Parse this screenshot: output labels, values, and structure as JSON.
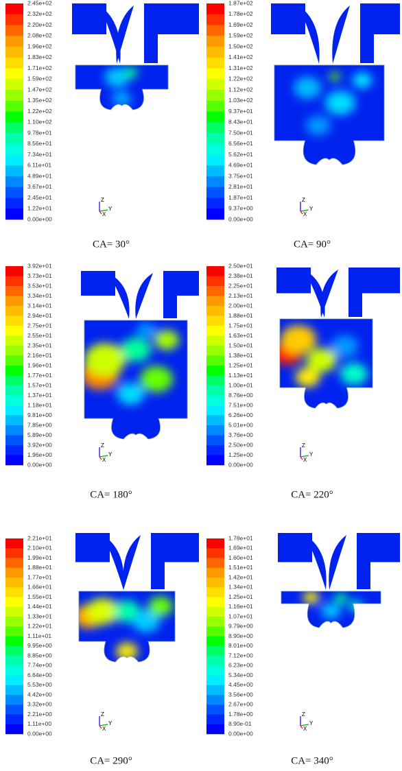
{
  "panels": [
    {
      "caption": "CA= 30°",
      "legend": [
        "2.45e+02",
        "2.32e+02",
        "2.20e+02",
        "2.08e+02",
        "1.96e+02",
        "1.83e+02",
        "1.71e+02",
        "1.59e+02",
        "1.47e+02",
        "1.35e+02",
        "1.22e+02",
        "1.10e+02",
        "9.78e+01",
        "8.56e+01",
        "7.34e+01",
        "6.11e+01",
        "4.89e+01",
        "3.67e+01",
        "2.45e+01",
        "1.22e+01",
        "0.00e+00"
      ]
    },
    {
      "caption": "CA= 90°",
      "legend": [
        "1.87e+02",
        "1.78e+02",
        "1.69e+02",
        "1.59e+02",
        "1.50e+02",
        "1.41e+02",
        "1.31e+02",
        "1.22e+02",
        "1.12e+02",
        "1.03e+02",
        "9.37e+01",
        "8.43e+01",
        "7.50e+01",
        "6.56e+01",
        "5.62e+01",
        "4.69e+01",
        "3.75e+01",
        "2.81e+01",
        "1.87e+01",
        "9.37e+00",
        "0.00e+00"
      ]
    },
    {
      "caption": "CA= 180°",
      "legend": [
        "3.92e+01",
        "3.73e+01",
        "3.53e+01",
        "3.34e+01",
        "3.14e+01",
        "2.94e+01",
        "2.75e+01",
        "2.55e+01",
        "2.35e+01",
        "2.16e+01",
        "1.96e+01",
        "1.77e+01",
        "1.57e+01",
        "1.37e+01",
        "1.18e+01",
        "9.81e+00",
        "7.85e+00",
        "5.89e+00",
        "3.92e+00",
        "1.96e+00",
        "0.00e+00"
      ]
    },
    {
      "caption": "CA= 220°",
      "legend": [
        "2.50e+01",
        "2.38e+01",
        "2.25e+01",
        "2.13e+01",
        "2.00e+01",
        "1.88e+01",
        "1.75e+01",
        "1.63e+01",
        "1.50e+01",
        "1.38e+01",
        "1.25e+01",
        "1.13e+01",
        "1.00e+01",
        "8.76e+00",
        "7.51e+00",
        "6.26e+00",
        "5.01e+00",
        "3.76e+00",
        "2.50e+00",
        "1.25e+00",
        "0.00e+00"
      ]
    },
    {
      "caption": "CA= 290°",
      "legend": [
        "2.21e+01",
        "2.10e+01",
        "1.99e+01",
        "1.88e+01",
        "1.77e+01",
        "1.66e+01",
        "1.55e+01",
        "1.44e+01",
        "1.33e+01",
        "1.22e+01",
        "1.11e+01",
        "9.95e+00",
        "8.85e+00",
        "7.74e+00",
        "6.64e+00",
        "5.53e+00",
        "4.42e+00",
        "3.32e+00",
        "2.21e+00",
        "1.11e+00",
        "0.00e+00"
      ]
    },
    {
      "caption": "CA= 340°",
      "legend": [
        "1.78e+01",
        "1.69e+01",
        "1.60e+01",
        "1.51e+01",
        "1.42e+01",
        "1.34e+01",
        "1.25e+01",
        "1.16e+01",
        "1.07e+01",
        "9.79e+00",
        "8.90e+00",
        "8.01e+00",
        "7.12e+00",
        "6.23e+00",
        "5.34e+00",
        "4.45e+00",
        "3.56e+00",
        "2.67e+00",
        "1.78e+00",
        "8.90e-01",
        "0.00e+00"
      ]
    }
  ],
  "triad": {
    "z": "Z",
    "y": "Y",
    "x": "X"
  }
}
